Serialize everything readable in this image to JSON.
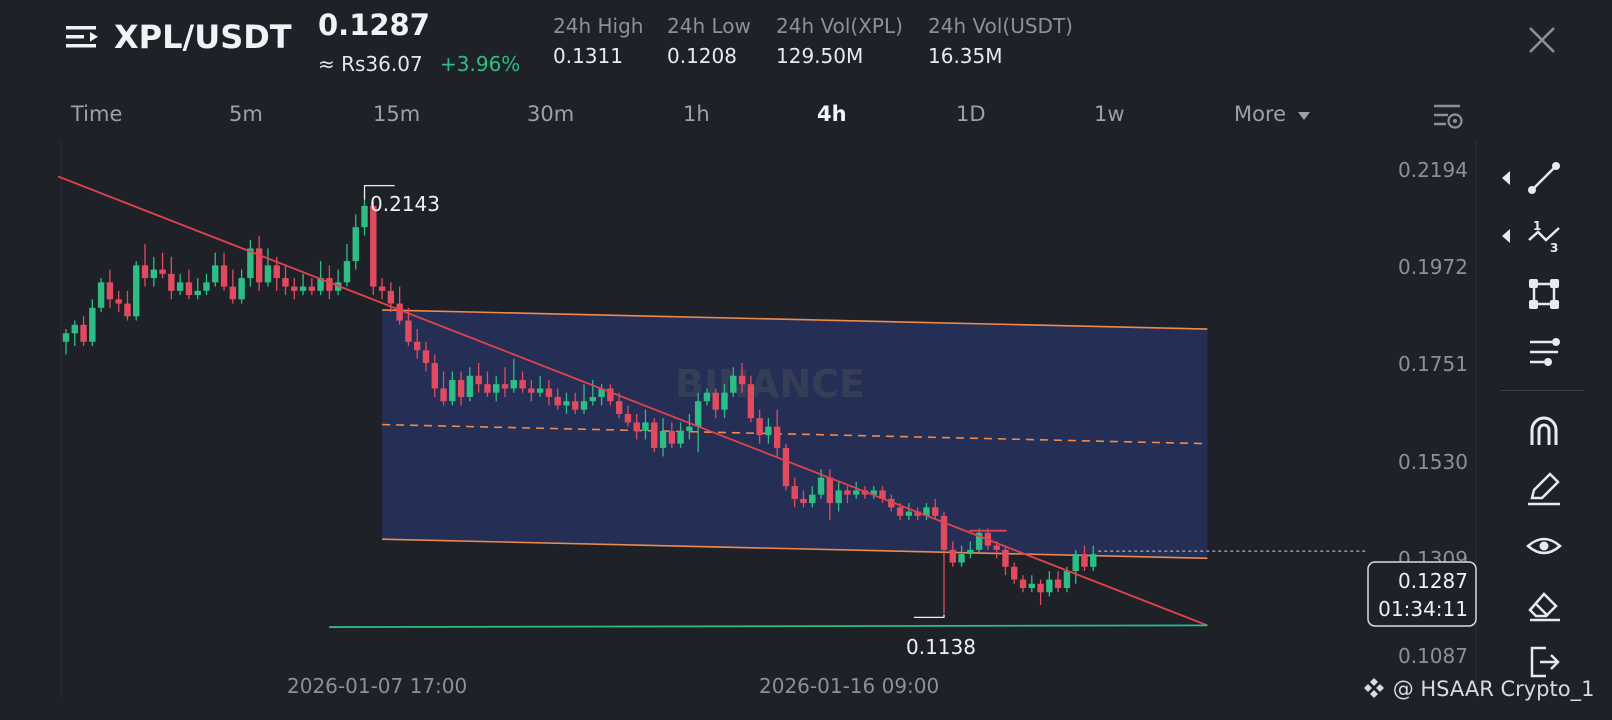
{
  "header": {
    "pair": "XPL/USDT",
    "last_price": "0.1287",
    "last_price_local": "≈ Rs36.07",
    "change_pct": "+3.96%",
    "stats": [
      {
        "label": "24h High",
        "value": "0.1311"
      },
      {
        "label": "24h Low",
        "value": "0.1208"
      },
      {
        "label": "24h Vol(XPL)",
        "value": "129.50M"
      },
      {
        "label": "24h Vol(USDT)",
        "value": "16.35M"
      }
    ]
  },
  "timeframes": [
    "Time",
    "5m",
    "15m",
    "30m",
    "1h",
    "4h",
    "1D",
    "1w"
  ],
  "active_timeframe": "4h",
  "more_label": "More",
  "watermark": "BINANCE",
  "credit": "@ HSAAR Crypto_1",
  "colors": {
    "background": "#1e2128",
    "up": "#2ebd85",
    "down": "#e14b5f",
    "trendline": "#e0434d",
    "channel": "#f08a4b",
    "channel_fill": "#26305a",
    "support": "#2ebd85"
  },
  "tools": [
    "trendline-tool-icon",
    "fib-tool-icon",
    "shapes-tool-icon",
    "settings-lines-icon",
    "magnet-icon",
    "pencil-icon",
    "eye-icon",
    "eraser-icon",
    "exit-icon"
  ],
  "chart_data": {
    "type": "candlestick",
    "pair": "XPL/USDT",
    "interval": "4h",
    "y_ticks": [
      "0.2194",
      "0.1972",
      "0.1751",
      "0.1530",
      "0.1309",
      "0.1087"
    ],
    "ylim": [
      0.108,
      0.222
    ],
    "x_ticks": [
      "2026-01-07 17:00",
      "2026-01-16 09:00"
    ],
    "high_label": "0.2143",
    "low_label": "0.1138",
    "current_price_label": "0.1287",
    "countdown": "01:34:11",
    "candles": [
      [
        0.178,
        0.18,
        0.181,
        0.175
      ],
      [
        0.18,
        0.182,
        0.183,
        0.177
      ],
      [
        0.182,
        0.178,
        0.184,
        0.177
      ],
      [
        0.178,
        0.186,
        0.188,
        0.177
      ],
      [
        0.186,
        0.192,
        0.193,
        0.185
      ],
      [
        0.192,
        0.188,
        0.195,
        0.186
      ],
      [
        0.188,
        0.187,
        0.19,
        0.185
      ],
      [
        0.187,
        0.184,
        0.19,
        0.183
      ],
      [
        0.184,
        0.196,
        0.197,
        0.183
      ],
      [
        0.196,
        0.193,
        0.201,
        0.191
      ],
      [
        0.193,
        0.195,
        0.198,
        0.191
      ],
      [
        0.195,
        0.194,
        0.199,
        0.193
      ],
      [
        0.194,
        0.19,
        0.198,
        0.188
      ],
      [
        0.19,
        0.192,
        0.194,
        0.189
      ],
      [
        0.192,
        0.189,
        0.195,
        0.188
      ],
      [
        0.189,
        0.19,
        0.193,
        0.188
      ],
      [
        0.19,
        0.192,
        0.194,
        0.189
      ],
      [
        0.192,
        0.196,
        0.199,
        0.191
      ],
      [
        0.196,
        0.191,
        0.199,
        0.19
      ],
      [
        0.191,
        0.188,
        0.195,
        0.187
      ],
      [
        0.188,
        0.193,
        0.195,
        0.187
      ],
      [
        0.193,
        0.2,
        0.202,
        0.191
      ],
      [
        0.2,
        0.192,
        0.203,
        0.19
      ],
      [
        0.192,
        0.196,
        0.2,
        0.191
      ],
      [
        0.196,
        0.193,
        0.198,
        0.19
      ],
      [
        0.193,
        0.191,
        0.196,
        0.189
      ],
      [
        0.191,
        0.19,
        0.193,
        0.188
      ],
      [
        0.19,
        0.191,
        0.194,
        0.189
      ],
      [
        0.191,
        0.19,
        0.193,
        0.189
      ],
      [
        0.19,
        0.193,
        0.197,
        0.189
      ],
      [
        0.193,
        0.19,
        0.196,
        0.188
      ],
      [
        0.19,
        0.192,
        0.195,
        0.189
      ],
      [
        0.192,
        0.197,
        0.201,
        0.191
      ],
      [
        0.197,
        0.205,
        0.208,
        0.195
      ],
      [
        0.205,
        0.21,
        0.214,
        0.203
      ],
      [
        0.21,
        0.191,
        0.211,
        0.189
      ],
      [
        0.191,
        0.19,
        0.193,
        0.188
      ],
      [
        0.19,
        0.187,
        0.192,
        0.185
      ],
      [
        0.187,
        0.183,
        0.191,
        0.182
      ],
      [
        0.183,
        0.178,
        0.186,
        0.177
      ],
      [
        0.178,
        0.176,
        0.181,
        0.174
      ],
      [
        0.176,
        0.173,
        0.178,
        0.171
      ],
      [
        0.173,
        0.167,
        0.175,
        0.165
      ],
      [
        0.167,
        0.164,
        0.171,
        0.163
      ],
      [
        0.164,
        0.169,
        0.171,
        0.163
      ],
      [
        0.169,
        0.165,
        0.171,
        0.163
      ],
      [
        0.165,
        0.17,
        0.172,
        0.164
      ],
      [
        0.17,
        0.168,
        0.173,
        0.166
      ],
      [
        0.168,
        0.166,
        0.171,
        0.165
      ],
      [
        0.166,
        0.168,
        0.17,
        0.164
      ],
      [
        0.168,
        0.167,
        0.172,
        0.165
      ],
      [
        0.167,
        0.169,
        0.174,
        0.166
      ],
      [
        0.169,
        0.167,
        0.171,
        0.166
      ],
      [
        0.167,
        0.166,
        0.169,
        0.164
      ],
      [
        0.166,
        0.167,
        0.17,
        0.165
      ],
      [
        0.167,
        0.165,
        0.169,
        0.163
      ],
      [
        0.165,
        0.163,
        0.167,
        0.162
      ],
      [
        0.163,
        0.164,
        0.166,
        0.161
      ],
      [
        0.164,
        0.162,
        0.166,
        0.161
      ],
      [
        0.162,
        0.164,
        0.168,
        0.161
      ],
      [
        0.164,
        0.165,
        0.169,
        0.163
      ],
      [
        0.165,
        0.167,
        0.168,
        0.163
      ],
      [
        0.167,
        0.164,
        0.168,
        0.163
      ],
      [
        0.164,
        0.161,
        0.166,
        0.16
      ],
      [
        0.161,
        0.159,
        0.163,
        0.158
      ],
      [
        0.159,
        0.157,
        0.161,
        0.155
      ],
      [
        0.157,
        0.159,
        0.162,
        0.155
      ],
      [
        0.159,
        0.153,
        0.16,
        0.152
      ],
      [
        0.153,
        0.157,
        0.16,
        0.151
      ],
      [
        0.157,
        0.154,
        0.159,
        0.153
      ],
      [
        0.154,
        0.157,
        0.159,
        0.153
      ],
      [
        0.157,
        0.158,
        0.161,
        0.155
      ],
      [
        0.158,
        0.164,
        0.166,
        0.152
      ],
      [
        0.164,
        0.166,
        0.167,
        0.163
      ],
      [
        0.166,
        0.162,
        0.167,
        0.16
      ],
      [
        0.162,
        0.166,
        0.168,
        0.16
      ],
      [
        0.166,
        0.17,
        0.172,
        0.165
      ],
      [
        0.17,
        0.168,
        0.173,
        0.166
      ],
      [
        0.168,
        0.16,
        0.17,
        0.159
      ],
      [
        0.16,
        0.156,
        0.162,
        0.154
      ],
      [
        0.156,
        0.158,
        0.16,
        0.154
      ],
      [
        0.158,
        0.153,
        0.162,
        0.151
      ],
      [
        0.153,
        0.144,
        0.154,
        0.143
      ],
      [
        0.144,
        0.141,
        0.146,
        0.139
      ],
      [
        0.141,
        0.14,
        0.143,
        0.139
      ],
      [
        0.14,
        0.142,
        0.144,
        0.139
      ],
      [
        0.142,
        0.146,
        0.148,
        0.141
      ],
      [
        0.146,
        0.14,
        0.148,
        0.136
      ],
      [
        0.14,
        0.143,
        0.145,
        0.138
      ],
      [
        0.143,
        0.142,
        0.144,
        0.14
      ],
      [
        0.142,
        0.143,
        0.145,
        0.141
      ],
      [
        0.143,
        0.142,
        0.144,
        0.141
      ],
      [
        0.142,
        0.143,
        0.144,
        0.141
      ],
      [
        0.143,
        0.141,
        0.144,
        0.14
      ],
      [
        0.141,
        0.139,
        0.142,
        0.138
      ],
      [
        0.139,
        0.137,
        0.14,
        0.136
      ],
      [
        0.137,
        0.138,
        0.14,
        0.136
      ],
      [
        0.138,
        0.137,
        0.139,
        0.136
      ],
      [
        0.137,
        0.139,
        0.14,
        0.136
      ],
      [
        0.139,
        0.137,
        0.141,
        0.136
      ],
      [
        0.137,
        0.129,
        0.138,
        0.114
      ],
      [
        0.129,
        0.126,
        0.131,
        0.125
      ],
      [
        0.126,
        0.128,
        0.13,
        0.125
      ],
      [
        0.128,
        0.129,
        0.131,
        0.127
      ],
      [
        0.129,
        0.133,
        0.134,
        0.128
      ],
      [
        0.133,
        0.13,
        0.134,
        0.129
      ],
      [
        0.13,
        0.129,
        0.131,
        0.127
      ],
      [
        0.129,
        0.125,
        0.13,
        0.123
      ],
      [
        0.125,
        0.122,
        0.126,
        0.121
      ],
      [
        0.122,
        0.12,
        0.123,
        0.119
      ],
      [
        0.12,
        0.121,
        0.123,
        0.119
      ],
      [
        0.121,
        0.119,
        0.122,
        0.116
      ],
      [
        0.119,
        0.122,
        0.124,
        0.118
      ],
      [
        0.122,
        0.12,
        0.124,
        0.119
      ],
      [
        0.12,
        0.124,
        0.125,
        0.119
      ],
      [
        0.124,
        0.128,
        0.129,
        0.121
      ],
      [
        0.128,
        0.125,
        0.13,
        0.124
      ],
      [
        0.125,
        0.128,
        0.13,
        0.124
      ]
    ],
    "drawings": {
      "trendline": {
        "from": [
          0,
          0.216
        ],
        "to": [
          130,
          0.1112
        ]
      },
      "channel_top": {
        "from": [
          36,
          0.1855
        ],
        "to": [
          130,
          0.181
        ]
      },
      "channel_bottom": {
        "from": [
          36,
          0.1315
        ],
        "to": [
          130,
          0.127
        ]
      },
      "channel_mid": {
        "from": [
          36,
          0.1585
        ],
        "to": [
          130,
          0.154
        ]
      },
      "support": {
        "from": [
          22,
          0.1108
        ],
        "to": [
          130,
          0.1112
        ]
      }
    }
  }
}
